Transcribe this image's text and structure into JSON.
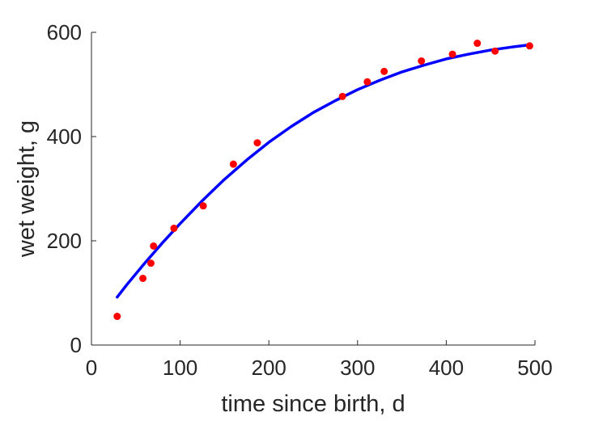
{
  "chart_data": {
    "type": "scatter",
    "title": "",
    "xlabel": "time since birth, d",
    "ylabel": "wet weight, g",
    "xlim": [
      0,
      500
    ],
    "ylim": [
      0,
      600
    ],
    "xticks": [
      0,
      100,
      200,
      300,
      400,
      500
    ],
    "yticks": [
      0,
      200,
      400,
      600
    ],
    "xtick_labels": [
      "0",
      "100",
      "200",
      "300",
      "400",
      "500"
    ],
    "ytick_labels": [
      "0",
      "200",
      "400",
      "600"
    ],
    "grid": false,
    "box": false,
    "series": [
      {
        "kind": "points",
        "color": "#ff0000",
        "x": [
          29,
          58,
          67,
          70,
          93,
          126,
          160,
          187,
          283,
          311,
          330,
          372,
          407,
          435,
          455,
          494
        ],
        "y": [
          55,
          128,
          157,
          190,
          224,
          267,
          347,
          388,
          477,
          505,
          525,
          545,
          558,
          579,
          564,
          574
        ]
      },
      {
        "kind": "line",
        "color": "#0000ff",
        "x": [
          29,
          40,
          60,
          80,
          100,
          125,
          150,
          175,
          200,
          225,
          250,
          275,
          300,
          325,
          350,
          375,
          400,
          425,
          450,
          475,
          494
        ],
        "y": [
          92,
          116,
          157,
          196,
          233,
          277,
          318,
          355,
          389,
          419,
          446,
          469,
          490,
          508,
          524,
          537,
          549,
          558,
          566,
          572,
          576
        ]
      }
    ]
  }
}
